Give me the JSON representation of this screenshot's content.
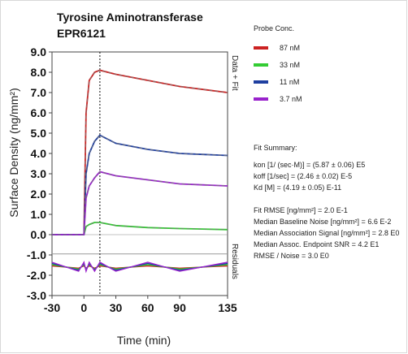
{
  "chart_data": {
    "type": "line",
    "title": "Tyrosine Aminotransferase",
    "subtitle": "EPR6121",
    "xlabel": "Time (min)",
    "ylabel": "Surface Density (ng/mm²)",
    "xlim": [
      -30,
      135
    ],
    "ylim": [
      -3.0,
      9.0
    ],
    "x_ticks": [
      -30,
      0,
      30,
      60,
      90,
      135
    ],
    "x_tick_labels": [
      "-30",
      "0",
      "30",
      "60",
      "90",
      "135"
    ],
    "y_ticks": [
      9.0,
      8.0,
      7.0,
      6.0,
      5.0,
      4.0,
      3.0,
      2.0,
      1.0,
      0.0,
      -1.0,
      -2.0,
      -3.0
    ],
    "y_tick_labels": [
      "9.0",
      "8.0",
      "7.0",
      "6.0",
      "5.0",
      "4.0",
      "3.0",
      "2.0",
      "1.0",
      "0.0",
      "-1.0",
      "-2.0",
      "-3.0"
    ],
    "panel_labels": {
      "top": "Data + Fit",
      "bottom": "Residuals"
    },
    "injection_end_x": 15,
    "legend_title": "Probe Conc.",
    "series": [
      {
        "name": "87 nM",
        "color": "#cc2222",
        "x": [
          -30,
          -5,
          0,
          2,
          5,
          10,
          15,
          30,
          60,
          90,
          135
        ],
        "values": [
          0.0,
          0.0,
          0.0,
          6.0,
          7.6,
          8.0,
          8.1,
          7.9,
          7.6,
          7.3,
          7.0
        ]
      },
      {
        "name": "33 nM",
        "color": "#33cc33",
        "x": [
          -30,
          -5,
          0,
          2,
          5,
          10,
          15,
          30,
          60,
          90,
          135
        ],
        "values": [
          0.0,
          0.0,
          0.0,
          0.4,
          0.5,
          0.6,
          0.6,
          0.45,
          0.35,
          0.3,
          0.25
        ]
      },
      {
        "name": "11 nM",
        "color": "#1f3fa0",
        "x": [
          -30,
          -5,
          0,
          2,
          5,
          10,
          15,
          30,
          60,
          90,
          135
        ],
        "values": [
          0.0,
          0.0,
          0.0,
          3.0,
          4.0,
          4.6,
          4.9,
          4.5,
          4.2,
          4.0,
          3.9
        ]
      },
      {
        "name": "3.7 nM",
        "color": "#9922cc",
        "x": [
          -30,
          -5,
          0,
          2,
          5,
          10,
          15,
          30,
          60,
          90,
          135
        ],
        "values": [
          0.0,
          0.0,
          0.0,
          1.8,
          2.4,
          2.8,
          3.1,
          2.9,
          2.7,
          2.5,
          2.4
        ]
      }
    ],
    "grid": false
  },
  "fit_summary": {
    "title": "Fit Summary:",
    "lines": [
      "kon  [1/ (sec·M)]  =  (5.87 ± 0.06) E5",
      "koff  [1/sec]  =  (2.46 ± 0.02) E-5",
      "Kd  [M]  =  (4.19 ± 0.05) E-11",
      "",
      "Fit RMSE [ng/mm²]  =  2.0 E-1",
      "Median Baseline Noise [ng/mm²]  =  6.6 E-2",
      "Median Association Signal [ng/mm²]  =  2.8 E0",
      "Median Assoc. Endpoint SNR  =  4.2 E1",
      "RMSE / Noise  =  3.0 E0"
    ]
  }
}
